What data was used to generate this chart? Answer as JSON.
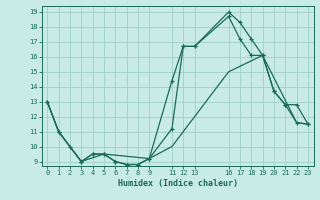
{
  "xlabel": "Humidex (Indice chaleur)",
  "bg_color": "#c8ebe8",
  "grid_color": "#a0cfcc",
  "line_color": "#1a6b5a",
  "ylim": [
    8.7,
    19.4
  ],
  "xlim": [
    -0.5,
    23.5
  ],
  "yticks": [
    9,
    10,
    11,
    12,
    13,
    14,
    15,
    16,
    17,
    18,
    19
  ],
  "xticks": [
    0,
    1,
    2,
    3,
    4,
    5,
    6,
    7,
    8,
    9,
    11,
    12,
    13,
    16,
    17,
    18,
    19,
    20,
    21,
    22,
    23
  ],
  "line1_x": [
    0,
    1,
    2,
    3,
    4,
    5,
    6,
    7,
    8,
    9,
    11,
    12,
    13,
    16,
    17,
    18,
    19,
    20,
    21,
    22,
    23
  ],
  "line1_y": [
    13,
    11,
    10,
    9,
    9.5,
    9.5,
    9,
    8.8,
    8.8,
    9.2,
    11.2,
    16.7,
    16.7,
    19,
    18.3,
    17.2,
    16.1,
    13.7,
    12.8,
    11.6,
    11.5
  ],
  "line2_x": [
    0,
    1,
    3,
    4,
    5,
    6,
    7,
    8,
    9,
    11,
    12,
    13,
    16,
    17,
    18,
    19,
    20,
    21,
    22,
    23
  ],
  "line2_y": [
    13,
    11,
    9,
    9.5,
    9.5,
    9,
    8.8,
    8.8,
    9.2,
    14.4,
    16.7,
    16.7,
    18.7,
    17.2,
    16.1,
    16.1,
    13.7,
    12.8,
    12.8,
    11.5
  ],
  "line3_x": [
    0,
    1,
    3,
    5,
    9,
    11,
    16,
    19,
    22,
    23
  ],
  "line3_y": [
    13,
    11,
    9,
    9.5,
    9.2,
    10,
    15,
    16.1,
    11.6,
    11.5
  ],
  "xlabel_fontsize": 6.0,
  "tick_fontsize": 5.0
}
